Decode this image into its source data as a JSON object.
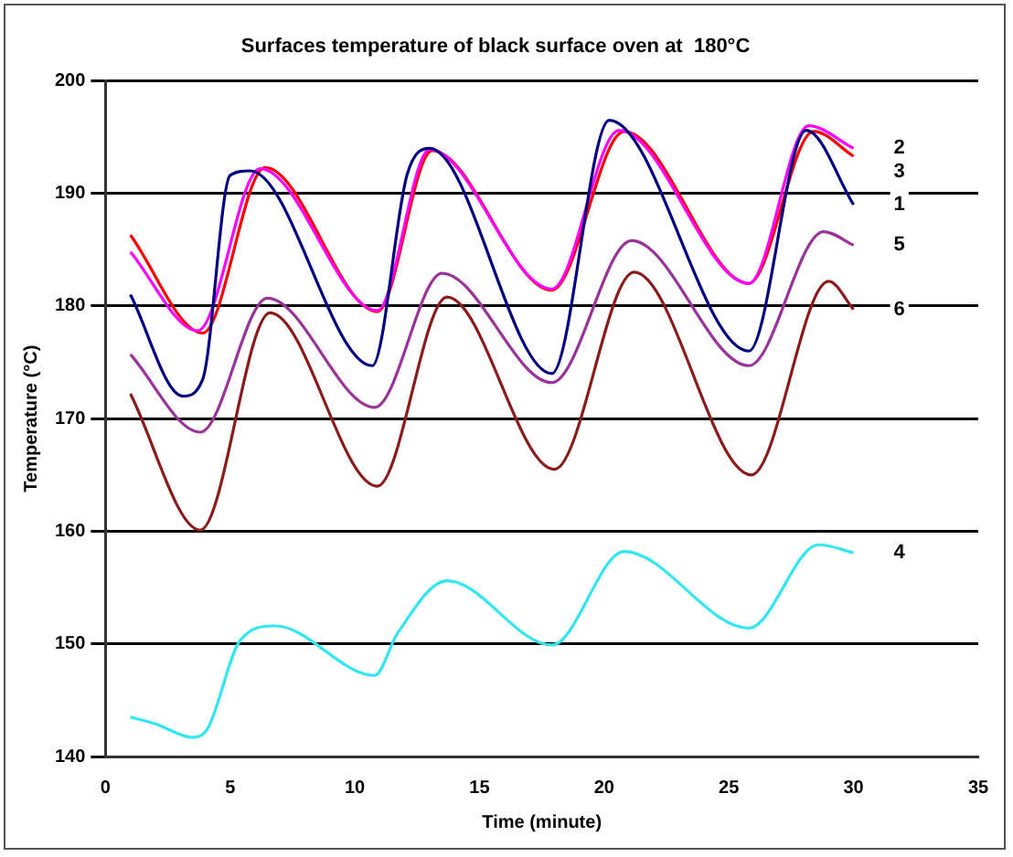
{
  "chart_data": {
    "type": "line",
    "title": "Surfaces temperature of black surface oven at  180°C",
    "xlabel": "Time (minute)",
    "ylabel": "Temperature (°C)",
    "xlim": [
      0,
      35
    ],
    "xticks": [
      0,
      5,
      10,
      15,
      20,
      25,
      30,
      35
    ],
    "ylim": [
      140,
      200
    ],
    "yticks": [
      140,
      150,
      160,
      170,
      180,
      190,
      200
    ],
    "grid": "y",
    "legend": false,
    "marker": "none",
    "line_style": "solid",
    "series": [
      {
        "name": "1",
        "color": "#000080",
        "x": [
          1,
          3.1,
          3.9,
          5,
          5.8,
          10.7,
          12.1,
          13,
          17.9,
          20.2,
          25.8,
          28.1,
          30
        ],
        "values": [
          181,
          172,
          173.5,
          191.6,
          192,
          174.7,
          191.7,
          194,
          174,
          196.5,
          176,
          195.6,
          189
        ]
      },
      {
        "name": "2",
        "color": "#ff00ff",
        "x": [
          1,
          3.7,
          6.2,
          10.9,
          13,
          17.9,
          20.6,
          25.8,
          28.2,
          30
        ],
        "values": [
          184.8,
          177.8,
          192.2,
          179.6,
          193.9,
          181.5,
          195.6,
          182,
          196,
          194
        ]
      },
      {
        "name": "3",
        "color": "#ff0000",
        "x": [
          1,
          3.9,
          6.4,
          10.9,
          13.1,
          17.9,
          20.8,
          25.8,
          28.4,
          30
        ],
        "values": [
          186.3,
          177.6,
          192.3,
          179.5,
          193.8,
          181.4,
          195.5,
          182,
          195.5,
          193.3
        ]
      },
      {
        "name": "4",
        "color": "#33e6f0",
        "x": [
          1,
          2,
          3.5,
          4.1,
          5.4,
          6.8,
          10.8,
          11.7,
          13.7,
          17.9,
          20.8,
          25.8,
          28.6,
          30
        ],
        "values": [
          143.5,
          142.9,
          141.7,
          142.5,
          150.3,
          151.6,
          147.2,
          150.9,
          155.6,
          149.9,
          158.2,
          151.4,
          158.8,
          158.1
        ]
      },
      {
        "name": "5",
        "color": "#993399",
        "x": [
          1,
          3.8,
          6.5,
          10.8,
          13.5,
          17.9,
          21.1,
          25.8,
          28.8,
          30
        ],
        "values": [
          175.7,
          168.8,
          180.7,
          171,
          182.9,
          173.2,
          185.8,
          174.7,
          186.6,
          185.4
        ]
      },
      {
        "name": "6",
        "color": "#8b1a1a",
        "x": [
          1,
          3.8,
          6.6,
          10.9,
          13.7,
          18,
          21.2,
          25.9,
          29,
          30
        ],
        "values": [
          172.2,
          160.1,
          179.4,
          164,
          180.8,
          165.5,
          183,
          165,
          182.2,
          179.7
        ]
      }
    ]
  }
}
